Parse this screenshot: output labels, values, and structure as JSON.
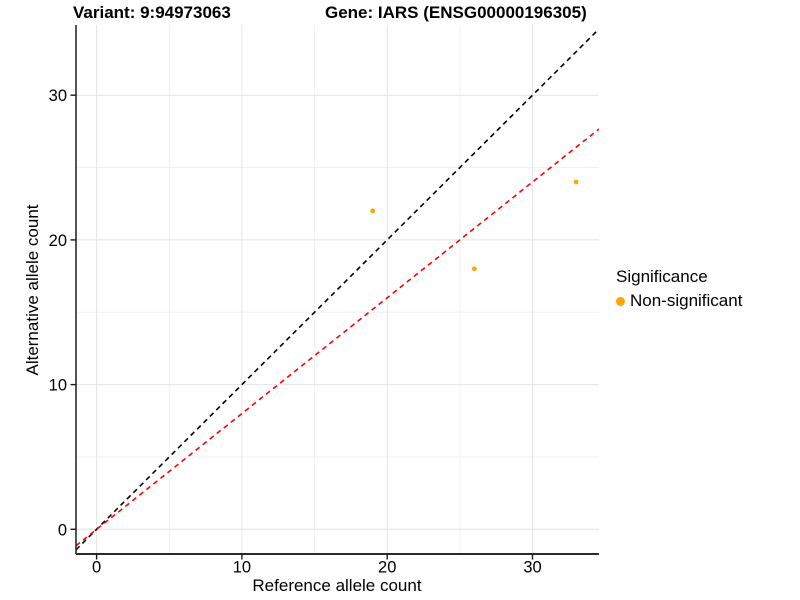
{
  "chart_data": {
    "type": "scatter",
    "title_left": "Variant: 9:94973063",
    "title_right": "Gene: IARS (ENSG00000196305)",
    "xlabel": "Reference allele count",
    "ylabel": "Alternative allele count",
    "x_ticks": [
      0,
      10,
      20,
      30
    ],
    "y_ticks": [
      0,
      10,
      20,
      30
    ],
    "x_minor_ticks": [
      5,
      15,
      25
    ],
    "y_minor_ticks": [
      5,
      15,
      25
    ],
    "xlim": [
      -1.42,
      34.58
    ],
    "ylim": [
      -1.7,
      34.85
    ],
    "grid": true,
    "series": [
      {
        "name": "Non-significant",
        "color": "#FFA500",
        "points": [
          {
            "x": 19,
            "y": 22
          },
          {
            "x": 26,
            "y": 18
          },
          {
            "x": 33,
            "y": 24
          }
        ]
      }
    ],
    "reference_lines": [
      {
        "name": "identity-line",
        "slope": 1.0,
        "intercept": 0.0,
        "color": "#000000",
        "style": "dashed"
      },
      {
        "name": "expected-ratio-line",
        "slope": 0.8,
        "intercept": 0.0,
        "color": "#FF0000",
        "style": "dashed"
      }
    ],
    "legend": {
      "position": "right",
      "title": "Significance",
      "items": [
        {
          "label": "Non-significant",
          "color": "#FFA500"
        }
      ]
    },
    "colors": {
      "axis_line": "#2b2b2b",
      "tick": "#1a1a1a",
      "grid_major": "#e4e4e4",
      "grid_minor": "#f1f1f1",
      "text": "#000000"
    }
  }
}
